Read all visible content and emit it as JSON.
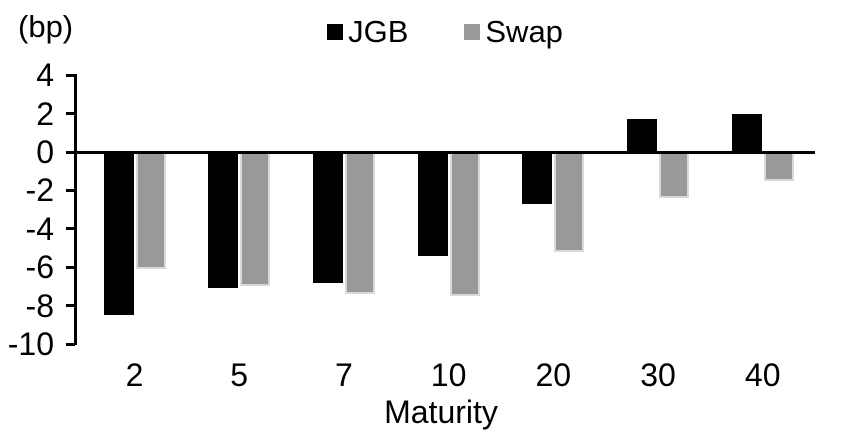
{
  "chart_data": {
    "type": "bar",
    "unit_label": "(bp)",
    "xlabel": "Maturity",
    "categories": [
      "2",
      "5",
      "7",
      "10",
      "20",
      "30",
      "40"
    ],
    "series": [
      {
        "name": "JGB",
        "color": "#000000",
        "values": [
          -8.5,
          -7.1,
          -6.8,
          -5.4,
          -2.7,
          1.7,
          2.0
        ]
      },
      {
        "name": "Swap",
        "color": "#999999",
        "values": [
          -6.1,
          -7.0,
          -7.4,
          -7.5,
          -5.2,
          -2.4,
          -1.5
        ]
      }
    ],
    "yticks": [
      4,
      2,
      0,
      -2,
      -4,
      -6,
      -8,
      -10
    ],
    "ylim": [
      -10,
      4
    ],
    "grid": false,
    "legend_position": "top-center",
    "axis_color": "#000000",
    "background_color": "#ffffff"
  }
}
